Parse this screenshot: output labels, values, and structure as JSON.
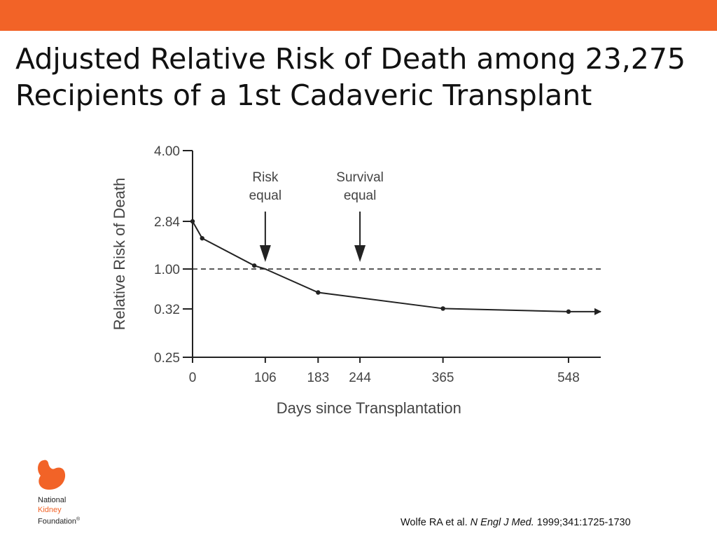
{
  "header": {
    "bar_color": "#f26327"
  },
  "title": {
    "line1": "Adjusted Relative Risk of Death among 23,275",
    "line2": "Recipients of a 1st Cadaveric Transplant"
  },
  "chart_data": {
    "type": "line",
    "xlabel": "Days since Transplantation",
    "ylabel": "Relative Risk of Death",
    "x_ticks": [
      0,
      106,
      183,
      244,
      365,
      548
    ],
    "y_ticks": [
      "4.00",
      "2.84",
      "1.00",
      "0.32",
      "0.25"
    ],
    "xlim": [
      0,
      595
    ],
    "series": [
      {
        "x": [
          0,
          14,
          90,
          106,
          183,
          365,
          548
        ],
        "y": [
          2.84,
          2.1,
          1.3,
          1.0,
          0.62,
          0.36,
          0.31
        ]
      }
    ],
    "reference_line": {
      "y": 1.0,
      "style": "dashed"
    },
    "annotations": [
      {
        "x": 106,
        "lines": [
          "Risk",
          "equal"
        ]
      },
      {
        "x": 244,
        "lines": [
          "Survival",
          "equal"
        ]
      }
    ],
    "grid": false,
    "line_color": "#222222"
  },
  "logo": {
    "line1": "National",
    "line2": "Kidney",
    "line3": "Foundation",
    "mark": "®",
    "color": "#f26327",
    "icon": "kidney-icon"
  },
  "citation": {
    "authors": "Wolfe RA et al.",
    "journal": "N Engl J Med.",
    "details": "1999;341:1725-1730"
  }
}
